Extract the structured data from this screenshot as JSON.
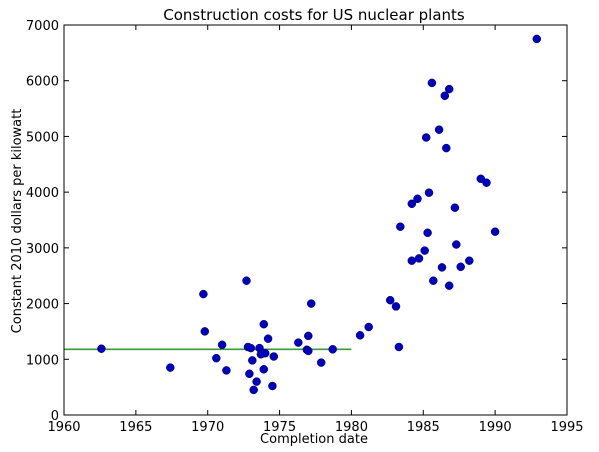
{
  "chart_data": {
    "type": "scatter",
    "title": "Construction costs for US nuclear plants",
    "xlabel": "Completion date",
    "ylabel": "Constant 2010 dollars per kilowatt",
    "xlim": [
      1960,
      1995
    ],
    "ylim": [
      0,
      7000
    ],
    "xticks": [
      1960,
      1965,
      1970,
      1975,
      1980,
      1985,
      1990,
      1995
    ],
    "yticks": [
      0,
      1000,
      2000,
      3000,
      4000,
      5000,
      6000,
      7000
    ],
    "grid": false,
    "legend": "none",
    "colors": {
      "points": "#0000bf",
      "line": "#3a9a3a"
    },
    "series": [
      {
        "type": "scatter",
        "points": [
          [
            1962.6,
            1190
          ],
          [
            1967.4,
            850
          ],
          [
            1969.7,
            2170
          ],
          [
            1969.8,
            1500
          ],
          [
            1970.6,
            1020
          ],
          [
            1971.0,
            1260
          ],
          [
            1971.3,
            800
          ],
          [
            1972.7,
            2410
          ],
          [
            1972.8,
            1220
          ],
          [
            1972.9,
            740
          ],
          [
            1973.0,
            1200
          ],
          [
            1973.1,
            980
          ],
          [
            1973.2,
            450
          ],
          [
            1973.4,
            600
          ],
          [
            1973.6,
            1200
          ],
          [
            1973.7,
            1090
          ],
          [
            1973.9,
            820
          ],
          [
            1973.9,
            1630
          ],
          [
            1974.0,
            1110
          ],
          [
            1974.2,
            1370
          ],
          [
            1974.5,
            520
          ],
          [
            1974.6,
            1050
          ],
          [
            1976.3,
            1300
          ],
          [
            1976.9,
            1170
          ],
          [
            1977.0,
            1150
          ],
          [
            1977.0,
            1420
          ],
          [
            1977.2,
            2000
          ],
          [
            1977.9,
            940
          ],
          [
            1978.7,
            1180
          ],
          [
            1980.6,
            1430
          ],
          [
            1981.2,
            1580
          ],
          [
            1982.7,
            2060
          ],
          [
            1983.1,
            1950
          ],
          [
            1983.3,
            1220
          ],
          [
            1983.4,
            3380
          ],
          [
            1984.2,
            3790
          ],
          [
            1984.2,
            2770
          ],
          [
            1984.6,
            3880
          ],
          [
            1984.7,
            2810
          ],
          [
            1985.1,
            2950
          ],
          [
            1985.2,
            4980
          ],
          [
            1985.3,
            3270
          ],
          [
            1985.4,
            3990
          ],
          [
            1985.6,
            5960
          ],
          [
            1985.7,
            2410
          ],
          [
            1986.1,
            5120
          ],
          [
            1986.3,
            2650
          ],
          [
            1986.5,
            5730
          ],
          [
            1986.6,
            4790
          ],
          [
            1986.8,
            5850
          ],
          [
            1986.8,
            2320
          ],
          [
            1987.2,
            3720
          ],
          [
            1987.3,
            3060
          ],
          [
            1987.6,
            2660
          ],
          [
            1988.2,
            2770
          ],
          [
            1989.0,
            4240
          ],
          [
            1989.4,
            4170
          ],
          [
            1990.0,
            3290
          ],
          [
            1992.9,
            6750
          ]
        ]
      },
      {
        "type": "line",
        "points": [
          [
            1960,
            1180
          ],
          [
            1980,
            1180
          ]
        ]
      }
    ]
  }
}
